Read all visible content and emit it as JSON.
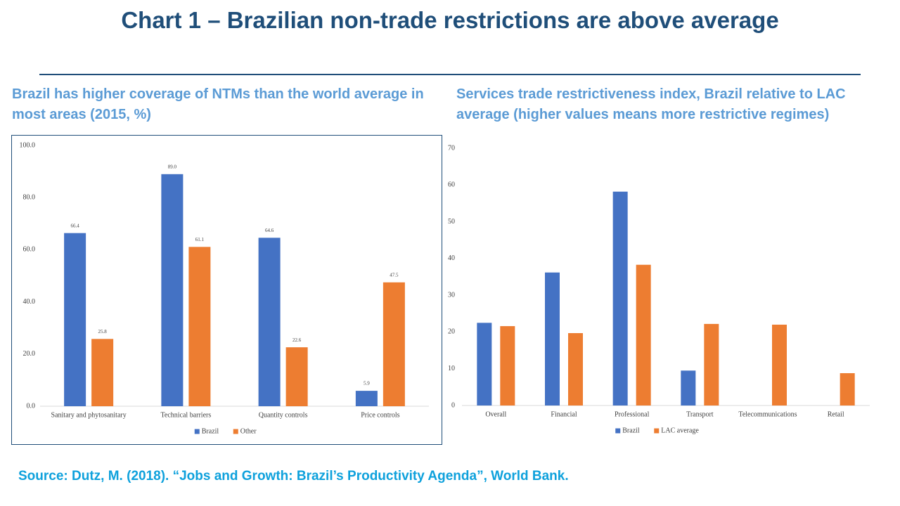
{
  "title": "Chart 1 – Brazilian non-trade restrictions are above average",
  "source": "Source: Dutz, M. (2018). “Jobs and Growth: Brazil’s Productivity Agenda”, World Bank.",
  "chart_data": [
    {
      "type": "bar",
      "title": "Brazil has higher coverage of NTMs than the world average in most areas (2015, %)",
      "categories": [
        "Sanitary and phytosanitary",
        "Technical barriers",
        "Quantity controls",
        "Price controls"
      ],
      "series": [
        {
          "name": "Brazil",
          "color": "#4472c4",
          "values": [
            66.4,
            89.0,
            64.6,
            5.9
          ],
          "value_labels": [
            "66.4",
            "89.0",
            "64.6",
            "5.9"
          ]
        },
        {
          "name": "Other",
          "color": "#ed7d31",
          "values": [
            25.8,
            61.1,
            22.6,
            47.5
          ],
          "value_labels": [
            "25.8",
            "61.1",
            "22.6",
            "47.5"
          ]
        }
      ],
      "ylim": [
        0,
        100
      ],
      "yticks": [
        {
          "value": 0,
          "label": "0.0"
        },
        {
          "value": 20,
          "label": "20.0"
        },
        {
          "value": 40,
          "label": "40.0"
        },
        {
          "value": 60,
          "label": "60.0"
        },
        {
          "value": 80,
          "label": "80.0"
        },
        {
          "value": 100,
          "label": "100.0"
        }
      ],
      "grid": false,
      "legend": "bottom"
    },
    {
      "type": "bar",
      "title": "Services trade restrictiveness index, Brazil relative to LAC average (higher values means more restrictive regimes)",
      "categories": [
        "Overall",
        "Financial",
        "Professional",
        "Transport",
        "Telecommunications",
        "Retail"
      ],
      "series": [
        {
          "name": "Brazil",
          "color": "#4472c4",
          "values": [
            22.5,
            36.2,
            58.2,
            9.5,
            null,
            null
          ]
        },
        {
          "name": "LAC average",
          "color": "#ed7d31",
          "values": [
            21.6,
            19.7,
            38.3,
            22.2,
            22.0,
            8.8
          ]
        }
      ],
      "ylim": [
        0,
        70
      ],
      "yticks": [
        0,
        10,
        20,
        30,
        40,
        50,
        60,
        70
      ],
      "grid": false,
      "legend": "bottom"
    }
  ]
}
